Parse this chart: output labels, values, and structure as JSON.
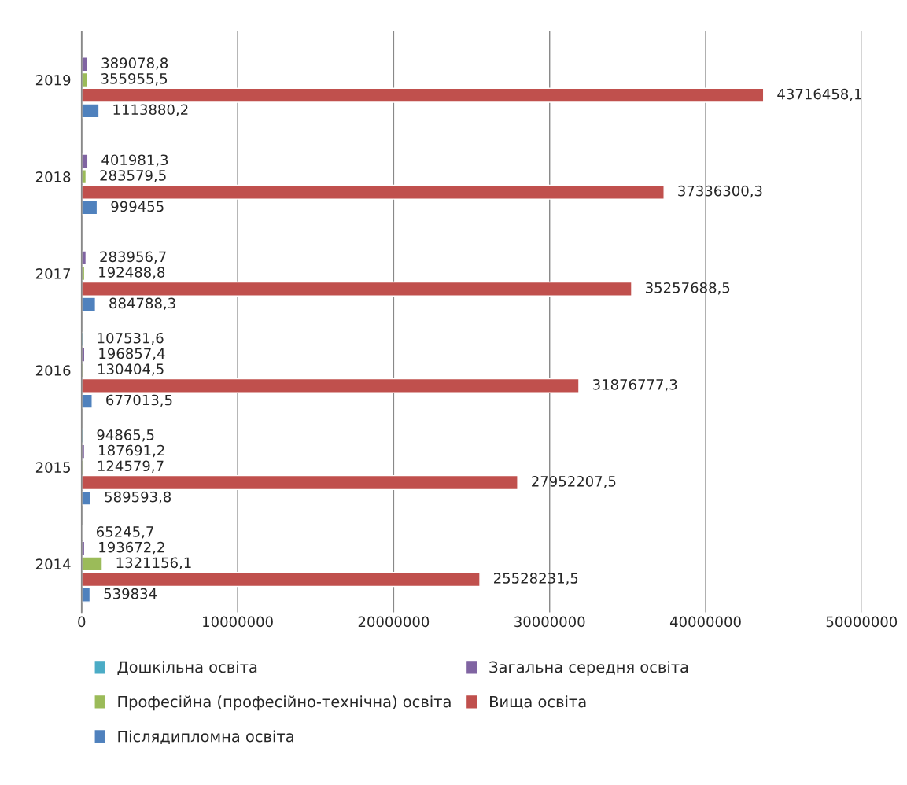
{
  "chart_data": {
    "type": "bar",
    "orientation": "horizontal",
    "categories": [
      "2019",
      "2018",
      "2017",
      "2016",
      "2015",
      "2014"
    ],
    "series": [
      {
        "name": "Дошкільна освіта",
        "color": "#4bacc6",
        "values": [
          null,
          null,
          null,
          107531.6,
          94865.5,
          65245.7
        ],
        "value_labels": [
          null,
          null,
          null,
          "107531,6",
          "94865,5",
          "65245,7"
        ]
      },
      {
        "name": "Загальна середня освіта",
        "color": "#8064a2",
        "values": [
          389078.8,
          401981.3,
          283956.7,
          196857.4,
          187691.2,
          193672.2
        ],
        "value_labels": [
          "389078,8",
          "401981,3",
          "283956,7",
          "196857,4",
          "187691,2",
          "193672,2"
        ]
      },
      {
        "name": "Професійна (професійно-технічна) освіта",
        "color": "#9bbb59",
        "values": [
          355955.5,
          283579.5,
          192488.8,
          130404.5,
          124579.7,
          1321156.1
        ],
        "value_labels": [
          "355955,5",
          "283579,5",
          "192488,8",
          "130404,5",
          "124579,7",
          "1321156,1"
        ]
      },
      {
        "name": "Вища освіта",
        "color": "#c0504d",
        "values": [
          43716458.1,
          37336300.3,
          35257688.5,
          31876777.3,
          27952207.5,
          25528231.5
        ],
        "value_labels": [
          "43716458,1",
          "37336300,3",
          "35257688,5",
          "31876777,3",
          "27952207,5",
          "25528231,5"
        ]
      },
      {
        "name": "Післядипломна освіта",
        "color": "#4f81bd",
        "values": [
          1113880.2,
          999455,
          884788.3,
          677013.5,
          589593.8,
          539834
        ],
        "value_labels": [
          "1113880,2",
          "999455",
          "884788,3",
          "677013,5",
          "589593,8",
          "539834"
        ]
      }
    ],
    "xlim": [
      0,
      50000000
    ],
    "xticks": [
      0,
      10000000,
      20000000,
      30000000,
      40000000,
      50000000
    ],
    "grid": "x",
    "legend": "bottom"
  }
}
